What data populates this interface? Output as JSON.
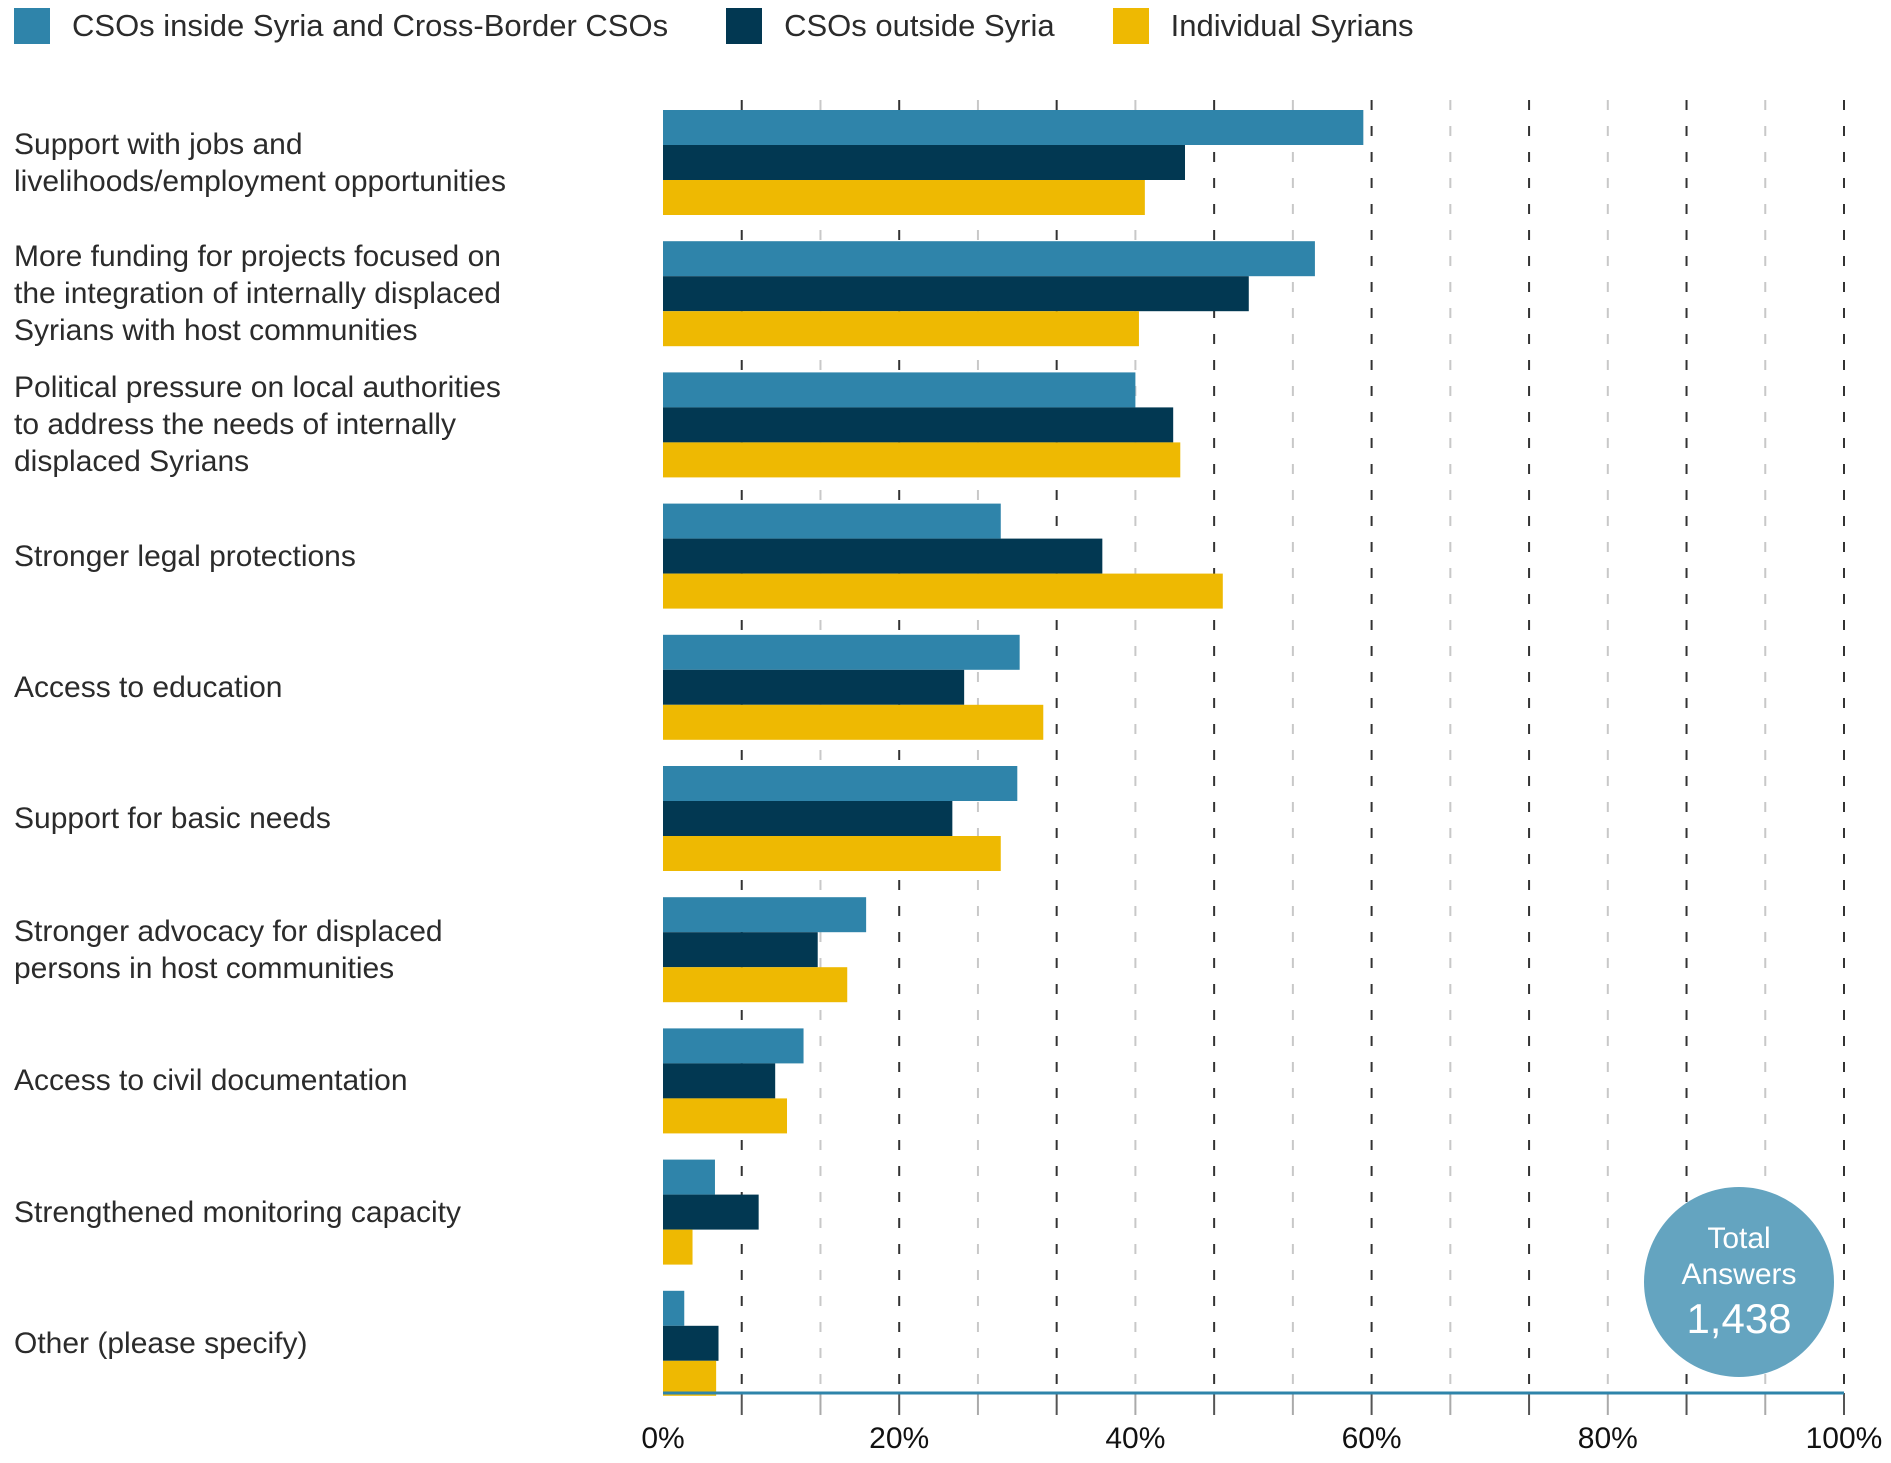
{
  "chart_data": {
    "type": "bar",
    "orientation": "horizontal",
    "title": "",
    "xlabel": "",
    "ylabel": "",
    "xlim": [
      0,
      100
    ],
    "x_ticks": [
      "0%",
      "20%",
      "40%",
      "60%",
      "80%",
      "100%"
    ],
    "grid": true,
    "legend_position": "top-left",
    "categories": [
      "Support with jobs and livelihoods/employment opportunities",
      "More funding for projects focused on the integration of internally displaced Syrians with host communities",
      "Political pressure on local authorities to address the needs of internally displaced Syrians",
      "Stronger legal protections",
      "Access to education",
      "Support for basic needs",
      "Stronger advocacy for displaced persons in host communities",
      "Access to civil documentation",
      "Strengthened monitoring capacity",
      "Other (please specify)"
    ],
    "category_lines": [
      [
        "Support with jobs and",
        "livelihoods/employment opportunities"
      ],
      [
        "More funding for projects focused on",
        "the integration of internally displaced",
        "Syrians with host communities"
      ],
      [
        "Political pressure on local authorities",
        "to address the needs of internally",
        "displaced Syrians"
      ],
      [
        "Stronger legal protections"
      ],
      [
        "Access to education"
      ],
      [
        "Support for basic needs"
      ],
      [
        "Stronger advocacy for displaced",
        "persons in host communities"
      ],
      [
        "Access to civil documentation"
      ],
      [
        "Strengthened monitoring capacity"
      ],
      [
        "Other (please specify)"
      ]
    ],
    "series": [
      {
        "name": "CSOs inside Syria and Cross-Border CSOs",
        "color": "#2f84aa",
        "values": [
          59.3,
          55.2,
          40.0,
          28.6,
          30.2,
          30.0,
          17.2,
          11.9,
          4.4,
          1.8
        ]
      },
      {
        "name": "CSOs outside Syria",
        "color": "#023852",
        "values": [
          44.2,
          49.6,
          43.2,
          37.2,
          25.5,
          24.5,
          13.1,
          9.5,
          8.1,
          4.7
        ]
      },
      {
        "name": "Individual Syrians",
        "color": "#eeb902",
        "values": [
          40.8,
          40.3,
          43.8,
          47.4,
          32.2,
          28.6,
          15.6,
          10.5,
          2.5,
          4.5
        ]
      }
    ],
    "annotation": {
      "line1": "Total",
      "line2": "Answers",
      "value": "1,438",
      "color": "#64a4c0"
    }
  },
  "legend": [
    {
      "label": "CSOs inside Syria and Cross-Border CSOs",
      "color": "#2f84aa"
    },
    {
      "label": "CSOs outside Syria",
      "color": "#023852"
    },
    {
      "label": "Individual Syrians",
      "color": "#eeb902"
    }
  ],
  "colors": {
    "axis": "#2f84aa",
    "grid_dark": "#333333",
    "grid_light": "#c8c8c8"
  }
}
